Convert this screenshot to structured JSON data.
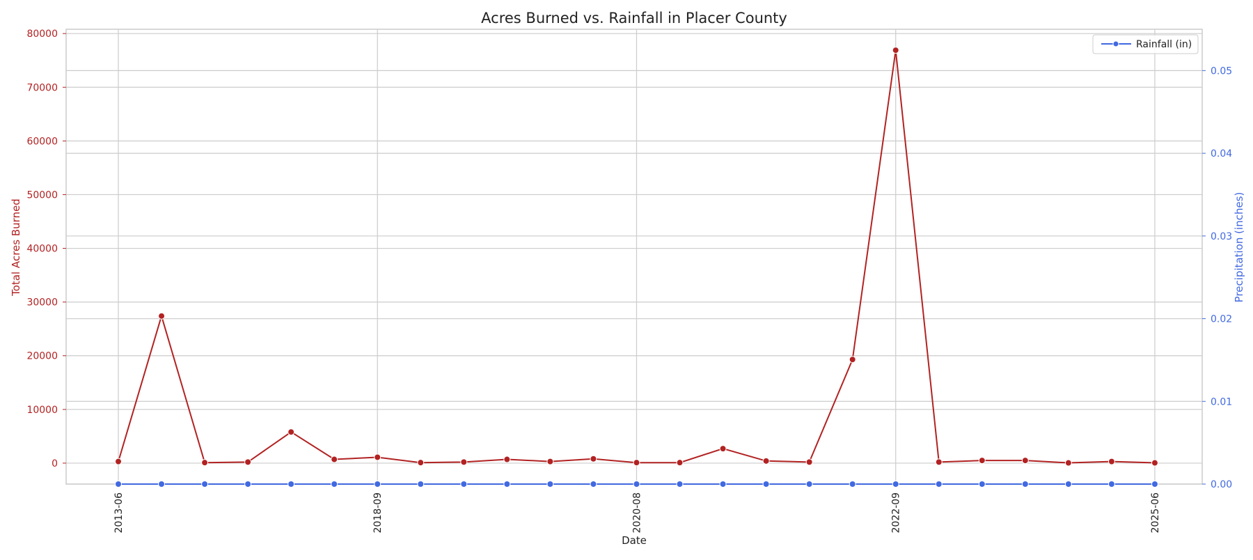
{
  "chart_data": {
    "type": "line",
    "title": "Acres Burned vs. Rainfall in Placer County",
    "xlabel": "Date",
    "x_tick_labels": [
      "2013-06",
      "2018-09",
      "2020-08",
      "2022-09",
      "2025-06"
    ],
    "y_left": {
      "label": "Total Acres Burned",
      "ticks": [
        0,
        10000,
        20000,
        30000,
        40000,
        50000,
        60000,
        70000,
        80000
      ],
      "ylim": [
        -3900,
        80800
      ],
      "color": "#b22222"
    },
    "y_right": {
      "label": "Precipitation (inches)",
      "ticks": [
        "0.00",
        "0.01",
        "0.02",
        "0.03",
        "0.04",
        "0.05"
      ],
      "ylim": [
        0,
        0.055
      ],
      "color": "#4169e1"
    },
    "grid": true,
    "legend": {
      "placement": "top-right",
      "entries": [
        "Rainfall (in)"
      ]
    },
    "series": [
      {
        "axis": "left",
        "color": "#b22222",
        "values": [
          300,
          27400,
          100,
          200,
          5800,
          700,
          1100,
          100,
          200,
          700,
          300,
          800,
          100,
          100,
          2700,
          400,
          200,
          19300,
          76900,
          200,
          500,
          500,
          50,
          300,
          50
        ]
      },
      {
        "name": "Rainfall (in)",
        "axis": "right",
        "color": "#4169e1",
        "values": [
          0,
          0,
          0,
          0,
          0,
          0,
          0,
          0,
          0,
          0,
          0,
          0,
          0,
          0,
          0,
          0,
          0,
          0,
          0,
          0,
          0,
          0,
          0,
          0,
          0
        ]
      }
    ]
  }
}
